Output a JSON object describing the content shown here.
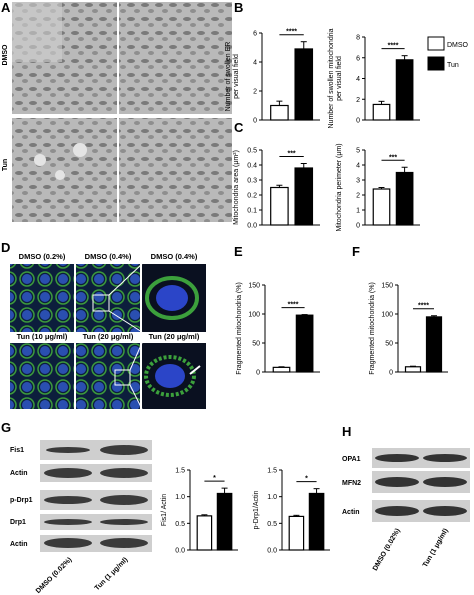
{
  "panel_labels": [
    "A",
    "B",
    "C",
    "D",
    "E",
    "F",
    "G",
    "H"
  ],
  "panel_a": {
    "rows": [
      "DMSO",
      "Tun"
    ]
  },
  "panel_d": {
    "top": [
      "DMSO (0.2%)",
      "DMSO (0.4%)",
      "DMSO (0.4%)"
    ],
    "bottom": [
      "Tun (10 μg/ml)",
      "Tun (20 μg/ml)",
      "Tun (20 μg/ml)"
    ]
  },
  "panel_g": {
    "blots": [
      "Fis1",
      "Actin",
      "p-Drp1",
      "Drp1",
      "Actin"
    ],
    "lanes": [
      "DMSO (0.02%)",
      "Tun (1 μg/ml)"
    ]
  },
  "panel_h": {
    "blots": [
      "OPA1",
      "MFN2",
      "Actin"
    ],
    "lanes": [
      "DMSO (0.02%)",
      "Tun (1 μg/ml)"
    ]
  },
  "legend": [
    {
      "name": "DMSO",
      "color": "#ffffff"
    },
    {
      "name": "Tun",
      "color": "#000000"
    }
  ],
  "chart_data": [
    {
      "type": "bar",
      "ylabel": [
        "Number of swollen ER",
        "per visual field"
      ],
      "values": [
        1.0,
        4.9
      ],
      "errors": [
        0.3,
        0.5
      ],
      "colors": [
        "#ffffff",
        "#000000"
      ],
      "significance": "****",
      "ylim": [
        0,
        6
      ],
      "yticks": [
        0,
        2,
        4,
        6
      ]
    },
    {
      "type": "bar",
      "ylabel": [
        "Number of swollen mitochondria",
        "per visual field"
      ],
      "values": [
        1.5,
        5.8
      ],
      "errors": [
        0.3,
        0.4
      ],
      "colors": [
        "#ffffff",
        "#000000"
      ],
      "significance": "****",
      "ylim": [
        0,
        8
      ],
      "yticks": [
        0,
        2,
        4,
        6,
        8
      ]
    },
    {
      "type": "bar",
      "ylabel": [
        "Mitochondria area (μm²)"
      ],
      "values": [
        0.25,
        0.38
      ],
      "errors": [
        0.015,
        0.03
      ],
      "colors": [
        "#ffffff",
        "#000000"
      ],
      "significance": "***",
      "ylim": [
        0,
        0.5
      ],
      "yticks": [
        {
          "value": 0,
          "label": "0.0"
        },
        0.1,
        0.2,
        0.3,
        0.4,
        0.5
      ]
    },
    {
      "type": "bar",
      "ylabel": [
        "Mitochondria perimeter (μm)"
      ],
      "values": [
        2.4,
        3.5
      ],
      "errors": [
        0.1,
        0.35
      ],
      "colors": [
        "#ffffff",
        "#000000"
      ],
      "significance": "***",
      "ylim": [
        0,
        5
      ],
      "yticks": [
        0,
        1,
        2,
        3,
        4,
        5
      ]
    },
    {
      "type": "bar",
      "ylabel": [
        "Fragmented mitochondria (%)"
      ],
      "values": [
        8,
        98
      ],
      "errors": [
        1,
        1
      ],
      "colors": [
        "#ffffff",
        "#000000"
      ],
      "significance": "****",
      "ylim": [
        0,
        150
      ],
      "yticks": [
        0,
        50,
        100,
        150
      ]
    },
    {
      "type": "bar",
      "ylabel": [
        "Fragmented mitochondria (%)"
      ],
      "values": [
        9,
        95
      ],
      "errors": [
        1,
        2
      ],
      "colors": [
        "#ffffff",
        "#000000"
      ],
      "significance": "****",
      "ylim": [
        0,
        150
      ],
      "yticks": [
        0,
        50,
        100,
        150
      ]
    },
    {
      "type": "bar",
      "ylabel": [
        "Fis1/ Actin"
      ],
      "values": [
        0.64,
        1.06
      ],
      "errors": [
        0.02,
        0.1
      ],
      "colors": [
        "#ffffff",
        "#000000"
      ],
      "significance": "*",
      "ylim": [
        0,
        1.5
      ],
      "yticks": [
        {
          "value": 0,
          "label": "0.0"
        },
        0.5,
        {
          "value": 1,
          "label": "1.0"
        },
        1.5
      ]
    },
    {
      "type": "bar",
      "ylabel": [
        "p-Drp1/Actin"
      ],
      "values": [
        0.63,
        1.06
      ],
      "errors": [
        0.02,
        0.09
      ],
      "colors": [
        "#ffffff",
        "#000000"
      ],
      "significance": "*",
      "ylim": [
        0,
        1.5
      ],
      "yticks": [
        {
          "value": 0,
          "label": "0.0"
        },
        0.5,
        {
          "value": 1,
          "label": "1.0"
        },
        1.5
      ]
    }
  ]
}
